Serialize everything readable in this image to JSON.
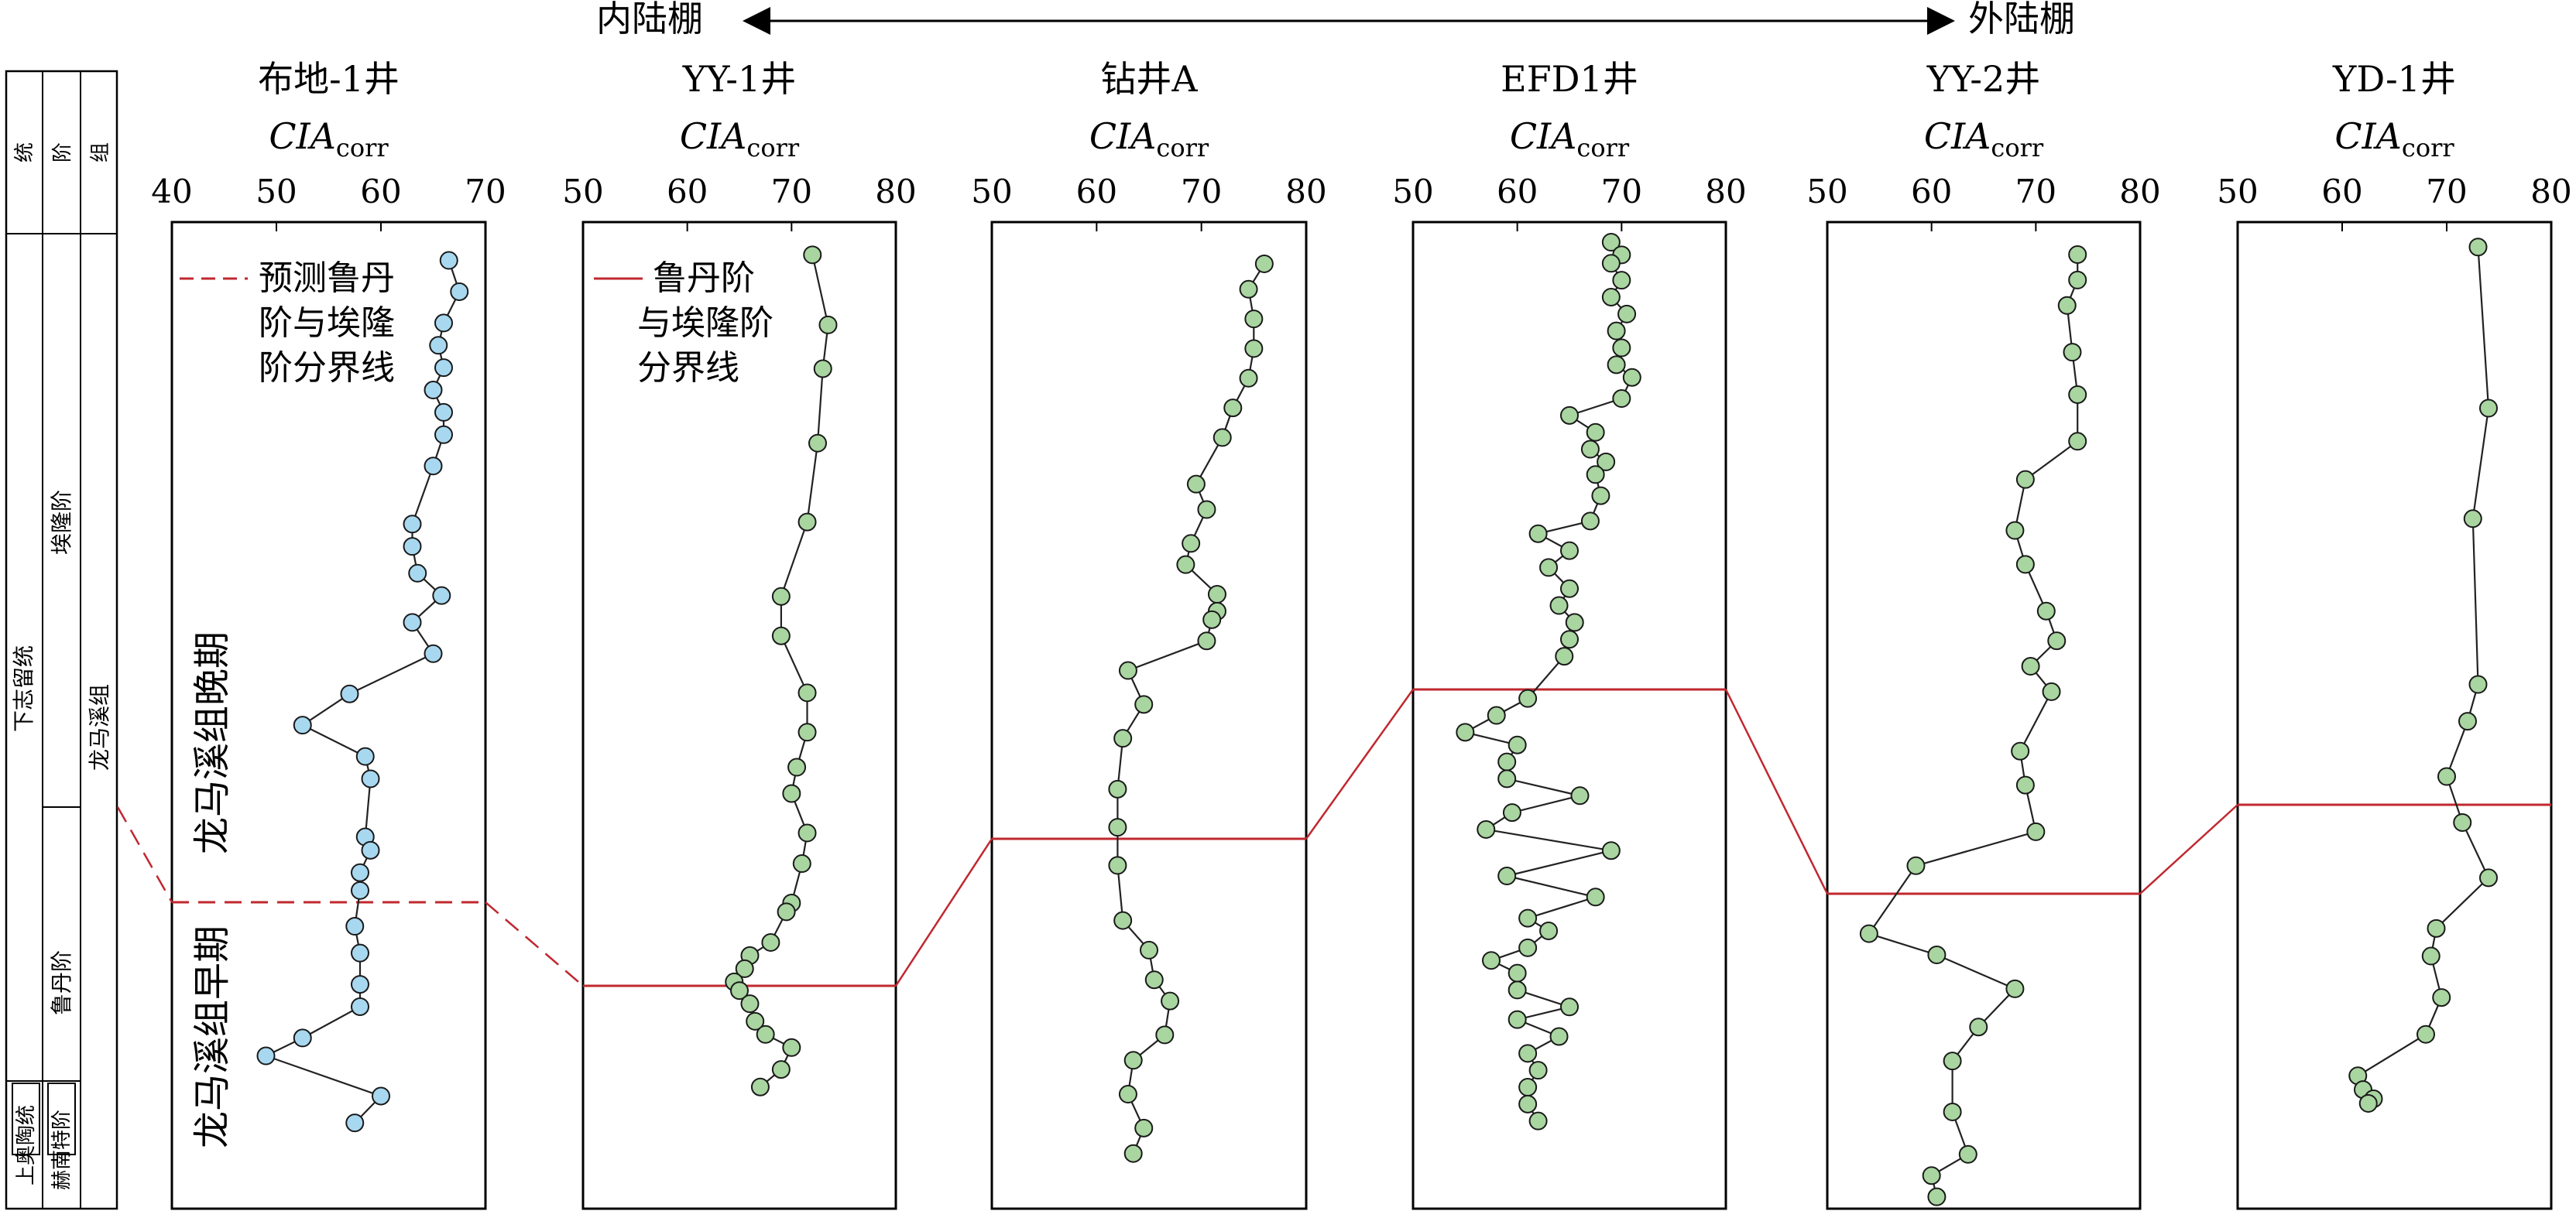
{
  "colors": {
    "boundary": "#c0282f",
    "bj_fill": "#a8d8f0",
    "green_fill": "#a9d5a0",
    "marker_stroke": "#1a1a1a",
    "frame": "#000000"
  },
  "header": {
    "left_label": "内陆棚",
    "right_label": "外陆棚"
  },
  "strat": {
    "col_headers": [
      "统",
      "阶",
      "组"
    ],
    "upper_series": "下志留统",
    "upper_stage_1": "埃隆阶",
    "upper_stage_2": "鲁丹阶",
    "formation": "龙马溪组",
    "lower_series": "上奥陶统",
    "lower_stage": "赫南特阶"
  },
  "annotations": {
    "late_period": "龙马溪组晚期",
    "early_period": "龙马溪组早期",
    "legend_dashed": [
      "预测鲁丹",
      "阶与埃隆",
      "阶分界线"
    ],
    "legend_solid": [
      "鲁丹阶",
      "与埃隆阶",
      "分界线"
    ]
  },
  "chart_data": [
    {
      "type": "line",
      "title": "布地-1井",
      "xlabel_main": "CIA",
      "xlabel_sub": "corr",
      "xlim": [
        40,
        70
      ],
      "xticks": [
        "40",
        "50",
        "60",
        "70"
      ],
      "boundary_style": "dashed",
      "y": [
        0.01,
        0.045,
        0.08,
        0.105,
        0.13,
        0.155,
        0.18,
        0.205,
        0.24,
        0.305,
        0.33,
        0.36,
        0.385,
        0.415,
        0.45,
        0.495,
        0.53,
        0.565,
        0.59,
        0.655,
        0.67,
        0.695,
        0.715,
        0.755,
        0.785,
        0.82,
        0.845,
        0.88,
        0.9,
        0.945,
        0.975
      ],
      "values": [
        66.5,
        67.5,
        66.0,
        65.5,
        66.0,
        65.0,
        66.0,
        66.0,
        65.0,
        63.0,
        63.0,
        63.5,
        65.8,
        63.0,
        65.0,
        57.0,
        52.5,
        58.5,
        59.0,
        58.5,
        59.0,
        58.0,
        58.0,
        57.5,
        58.0,
        58.0,
        58.0,
        52.5,
        49.0,
        60.0,
        57.5
      ]
    },
    {
      "type": "line",
      "title": "YY-1井",
      "xlabel_main": "CIA",
      "xlabel_sub": "corr",
      "xlim": [
        50,
        80
      ],
      "xticks": [
        "50",
        "60",
        "70",
        "80"
      ],
      "boundary_style": "solid",
      "y": [
        0.01,
        0.09,
        0.14,
        0.225,
        0.315,
        0.4,
        0.445,
        0.51,
        0.555,
        0.595,
        0.625,
        0.67,
        0.705,
        0.75,
        0.76,
        0.795,
        0.81,
        0.825,
        0.84,
        0.85,
        0.865,
        0.885,
        0.9,
        0.915,
        0.94,
        0.96
      ],
      "values": [
        72.0,
        73.5,
        73.0,
        72.5,
        71.5,
        69.0,
        69.0,
        71.5,
        71.5,
        70.5,
        70.0,
        71.5,
        71.0,
        70.0,
        69.5,
        68.0,
        66.0,
        65.5,
        64.5,
        65.0,
        66.0,
        66.5,
        67.5,
        70.0,
        69.0,
        67.0
      ]
    },
    {
      "type": "line",
      "title": "钻井A",
      "xlabel_main": "CIA",
      "xlabel_sub": "corr",
      "xlim": [
        50,
        80
      ],
      "xticks": [
        "50",
        "60",
        "70",
        "80"
      ],
      "boundary_style": "solid",
      "y": [
        0.01,
        0.04,
        0.075,
        0.11,
        0.145,
        0.18,
        0.215,
        0.27,
        0.3,
        0.34,
        0.365,
        0.4,
        0.42,
        0.43,
        0.455,
        0.49,
        0.53,
        0.57,
        0.63,
        0.675,
        0.72,
        0.785,
        0.82,
        0.855,
        0.88,
        0.92,
        0.95,
        0.99,
        1.03,
        1.06
      ],
      "values": [
        76.0,
        74.5,
        75.0,
        75.0,
        74.5,
        73.0,
        72.0,
        69.5,
        70.5,
        69.0,
        68.5,
        71.5,
        71.5,
        71.0,
        70.5,
        63.0,
        64.5,
        62.5,
        62.0,
        62.0,
        62.0,
        62.5,
        65.0,
        65.5,
        67.0,
        66.5,
        63.5,
        63.0,
        64.5,
        63.5
      ]
    },
    {
      "type": "line",
      "title": "EFD1井",
      "xlabel_main": "CIA",
      "xlabel_sub": "corr",
      "xlim": [
        50,
        80
      ],
      "xticks": [
        "50",
        "60",
        "70",
        "80"
      ],
      "boundary_style": "solid",
      "y": [
        0.0,
        0.015,
        0.025,
        0.045,
        0.065,
        0.085,
        0.105,
        0.125,
        0.145,
        0.16,
        0.185,
        0.205,
        0.225,
        0.245,
        0.26,
        0.275,
        0.3,
        0.33,
        0.345,
        0.365,
        0.385,
        0.41,
        0.43,
        0.45,
        0.47,
        0.49,
        0.54,
        0.56,
        0.58,
        0.595,
        0.615,
        0.635,
        0.655,
        0.675,
        0.695,
        0.72,
        0.75,
        0.775,
        0.8,
        0.815,
        0.835,
        0.85,
        0.865,
        0.885,
        0.905,
        0.92,
        0.94,
        0.96,
        0.98,
        1.0,
        1.02,
        1.04
      ],
      "values": [
        69.0,
        70.0,
        69.0,
        70.0,
        69.0,
        70.5,
        69.5,
        70.0,
        69.5,
        71.0,
        70.0,
        65.0,
        67.5,
        67.0,
        68.5,
        67.5,
        68.0,
        67.0,
        62.0,
        65.0,
        63.0,
        65.0,
        64.0,
        65.5,
        65.0,
        64.5,
        61.0,
        58.0,
        55.0,
        60.0,
        59.0,
        59.0,
        66.0,
        59.5,
        57.0,
        69.0,
        59.0,
        67.5,
        61.0,
        63.0,
        61.0,
        57.5,
        60.0,
        60.0,
        65.0,
        60.0,
        64.0,
        61.0,
        62.0,
        61.0,
        61.0,
        62.0
      ]
    },
    {
      "type": "line",
      "title": "YY-2井",
      "xlabel_main": "CIA",
      "xlabel_sub": "corr",
      "xlim": [
        50,
        80
      ],
      "xticks": [
        "50",
        "60",
        "70",
        "80"
      ],
      "boundary_style": "solid",
      "y": [
        0.01,
        0.04,
        0.07,
        0.125,
        0.175,
        0.23,
        0.275,
        0.335,
        0.375,
        0.43,
        0.465,
        0.495,
        0.525,
        0.595,
        0.635,
        0.69,
        0.73,
        0.81,
        0.835,
        0.875,
        0.92,
        0.96,
        1.02,
        1.07,
        1.095,
        1.12
      ],
      "values": [
        74.0,
        74.0,
        73.0,
        73.5,
        74.0,
        74.0,
        69.0,
        68.0,
        69.0,
        71.0,
        72.0,
        69.5,
        71.5,
        68.5,
        69.0,
        70.0,
        58.5,
        54.0,
        60.5,
        68.0,
        64.5,
        62.0,
        62.0,
        63.5,
        60.0,
        60.5
      ]
    },
    {
      "type": "line",
      "title": "YD-1井",
      "xlabel_main": "CIA",
      "xlabel_sub": "corr",
      "xlim": [
        50,
        80
      ],
      "xticks": [
        "50",
        "60",
        "70",
        "80"
      ],
      "boundary_style": "solid",
      "y": [
        0.075,
        0.25,
        0.37,
        0.55,
        0.59,
        0.65,
        0.7,
        0.76,
        0.815,
        0.845,
        0.89,
        0.93,
        0.975,
        0.99,
        1.0,
        1.005
      ],
      "values": [
        73.0,
        74.0,
        72.5,
        73.0,
        72.0,
        70.0,
        71.5,
        74.0,
        69.0,
        68.5,
        69.5,
        68.0,
        61.5,
        62.0,
        63.0,
        62.5
      ]
    }
  ]
}
